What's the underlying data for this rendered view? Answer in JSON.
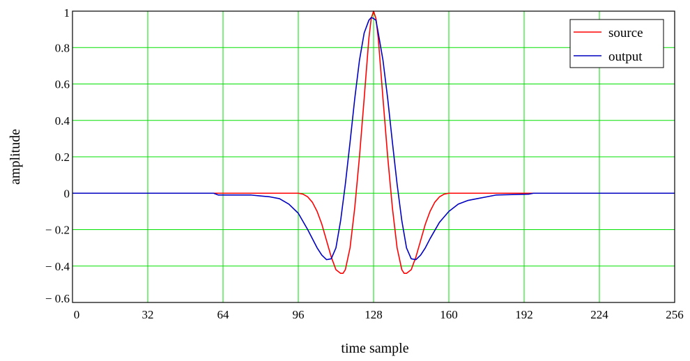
{
  "chart_data": {
    "type": "line",
    "title": "",
    "xlabel": "time sample",
    "ylabel": "amplitude",
    "xlim": [
      0,
      256
    ],
    "ylim": [
      -0.6,
      1
    ],
    "xticks": [
      0,
      32,
      64,
      96,
      128,
      160,
      192,
      224,
      256
    ],
    "xtick_labels": [
      "0",
      "32",
      "64",
      "96",
      "128",
      "160",
      "192",
      "224",
      "256"
    ],
    "yticks": [
      -0.6,
      -0.4,
      -0.2,
      0,
      0.2,
      0.4,
      0.6,
      0.8,
      1
    ],
    "ytick_labels": [
      "− 0.6",
      "− 0.4",
      "− 0.2",
      "0",
      "0.2",
      "0.4",
      "0.6",
      "0.8",
      "1"
    ],
    "grid": true,
    "grid_color": "#00e000",
    "legend": {
      "position": "top-right",
      "entries": [
        "source",
        "output"
      ]
    },
    "series": [
      {
        "name": "source",
        "color": "#ff0000",
        "x": [
          0,
          60,
          96,
          98,
          100,
          102,
          104,
          106,
          108,
          110,
          112,
          114,
          115,
          116,
          118,
          120,
          122,
          124,
          126,
          127,
          128,
          129,
          130,
          132,
          134,
          136,
          138,
          140,
          141,
          142,
          144,
          146,
          148,
          150,
          152,
          154,
          156,
          158,
          160,
          196,
          256
        ],
        "y": [
          0,
          0,
          0,
          -0.005,
          -0.02,
          -0.05,
          -0.1,
          -0.17,
          -0.26,
          -0.35,
          -0.42,
          -0.44,
          -0.44,
          -0.42,
          -0.3,
          -0.08,
          0.2,
          0.52,
          0.85,
          0.96,
          1.0,
          0.96,
          0.85,
          0.52,
          0.2,
          -0.08,
          -0.3,
          -0.42,
          -0.44,
          -0.44,
          -0.42,
          -0.35,
          -0.26,
          -0.17,
          -0.1,
          -0.05,
          -0.02,
          -0.005,
          0,
          0,
          0
        ]
      },
      {
        "name": "output",
        "color": "#0000c0",
        "x": [
          0,
          60,
          62,
          76,
          80,
          84,
          88,
          92,
          96,
          100,
          104,
          106,
          108,
          110,
          112,
          114,
          116,
          118,
          120,
          122,
          124,
          126,
          127,
          128,
          129,
          130,
          132,
          134,
          136,
          138,
          140,
          142,
          144,
          146,
          148,
          150,
          152,
          156,
          160,
          164,
          168,
          172,
          176,
          180,
          194,
          196,
          256
        ],
        "y": [
          0,
          0,
          -0.01,
          -0.01,
          -0.015,
          -0.02,
          -0.03,
          -0.06,
          -0.11,
          -0.2,
          -0.3,
          -0.34,
          -0.365,
          -0.36,
          -0.3,
          -0.15,
          0.05,
          0.28,
          0.52,
          0.73,
          0.88,
          0.95,
          0.965,
          0.96,
          0.95,
          0.88,
          0.73,
          0.52,
          0.28,
          0.05,
          -0.15,
          -0.3,
          -0.36,
          -0.365,
          -0.34,
          -0.3,
          -0.25,
          -0.16,
          -0.1,
          -0.06,
          -0.04,
          -0.03,
          -0.02,
          -0.01,
          -0.005,
          0,
          0
        ]
      }
    ]
  }
}
